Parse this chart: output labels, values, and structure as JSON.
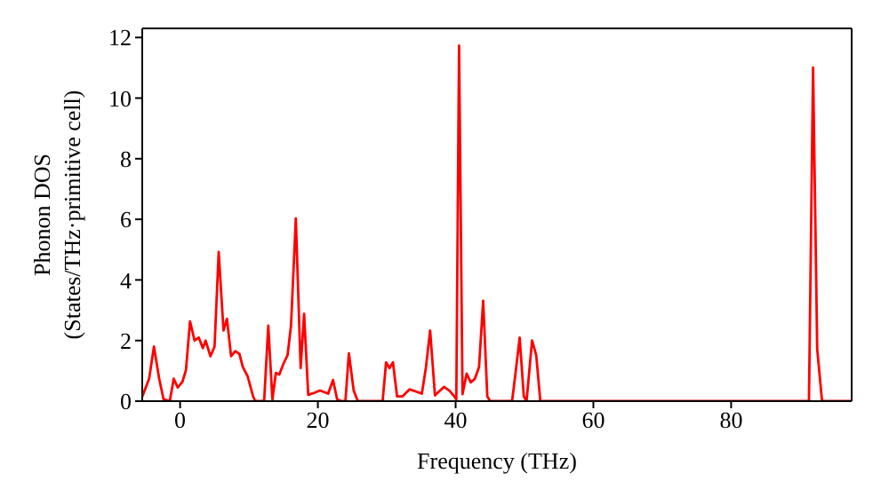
{
  "chart_data": {
    "type": "line",
    "xlabel": "Frequency (THz)",
    "ylabel": "Phonon DOS\n(States/THz·primitive cell)",
    "xlim": [
      -5.5,
      97.5
    ],
    "ylim": [
      0,
      12.3
    ],
    "xticks": [
      0,
      20,
      40,
      60,
      80
    ],
    "yticks": [
      0,
      2,
      4,
      6,
      8,
      10,
      12
    ],
    "legend": false,
    "marker": "none",
    "line_style": "solid",
    "series": [
      {
        "color": "#ff0000",
        "x": [
          -5.5,
          -4.5,
          -3.8,
          -3.04,
          -2.4,
          -1.5,
          -0.93,
          -0.34,
          0.34,
          0.85,
          1.44,
          2.1,
          2.7,
          3.3,
          3.7,
          4.4,
          5.0,
          5.6,
          6.3,
          6.8,
          7.4,
          8.0,
          8.6,
          9.1,
          9.8,
          10.6,
          10.9,
          12.2,
          12.8,
          13.4,
          13.9,
          14.4,
          15.0,
          15.6,
          16.1,
          16.8,
          17.5,
          18.0,
          18.6,
          19.2,
          20.3,
          21.5,
          22.2,
          22.8,
          23.4,
          24.0,
          24.5,
          25.2,
          25.8,
          29.4,
          29.9,
          30.4,
          30.9,
          31.5,
          32.3,
          33.3,
          35.1,
          35.7,
          36.3,
          37.0,
          38.3,
          39.1,
          39.8,
          40.1,
          40.5,
          41.0,
          41.6,
          42.2,
          42.8,
          43.4,
          44.0,
          44.6,
          45.0,
          48.2,
          48.7,
          49.3,
          49.9,
          50.3,
          51.1,
          51.7,
          52.3,
          91.3,
          91.9,
          92.5,
          93.2,
          97.5
        ],
        "values": [
          0.15,
          0.74,
          1.8,
          0.74,
          0.06,
          0,
          0.74,
          0.45,
          0.64,
          1.03,
          2.63,
          2.0,
          2.1,
          1.75,
          2.0,
          1.48,
          1.8,
          4.92,
          2.33,
          2.72,
          1.48,
          1.65,
          1.56,
          1.13,
          0.82,
          0.16,
          0,
          0,
          2.49,
          0.06,
          0.93,
          0.88,
          1.23,
          1.52,
          2.49,
          6.03,
          1.09,
          2.88,
          0.21,
          0.25,
          0.35,
          0.25,
          0.7,
          0.06,
          0,
          0,
          1.58,
          0.35,
          0,
          0,
          1.28,
          1.09,
          1.28,
          0.16,
          0.16,
          0.39,
          0.25,
          1.13,
          2.33,
          0.19,
          0.47,
          0.35,
          0.16,
          0.06,
          11.73,
          0.23,
          0.91,
          0.62,
          0.74,
          1.13,
          3.31,
          0.16,
          0,
          0,
          0.93,
          2.1,
          0.16,
          0,
          2.0,
          1.52,
          0,
          0,
          11.01,
          1.71,
          0,
          0
        ]
      }
    ]
  }
}
